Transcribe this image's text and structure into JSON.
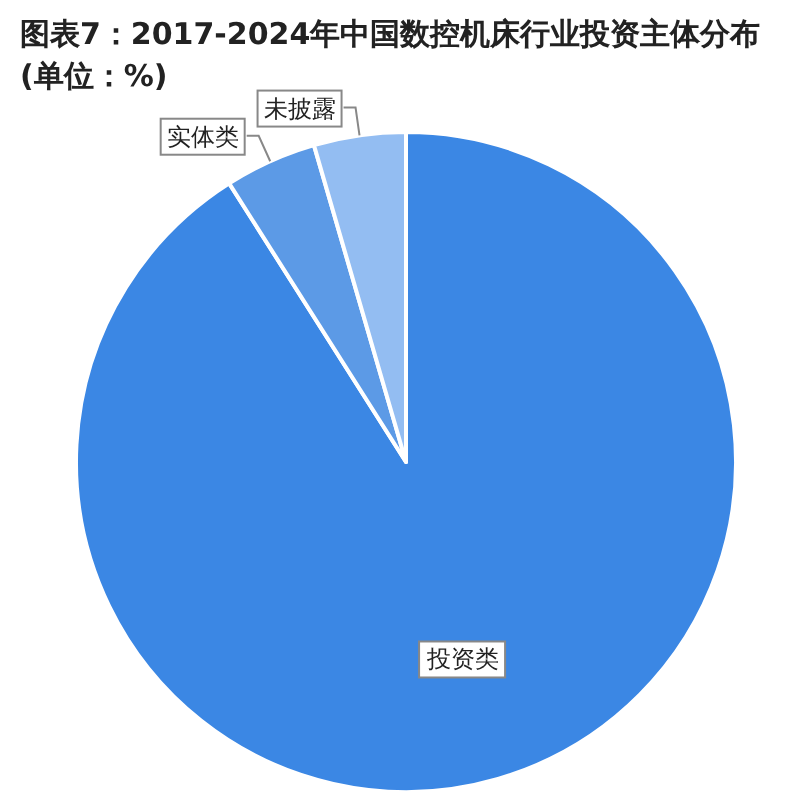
{
  "chart_data": {
    "type": "pie",
    "title": "图表7：2017-2024年中国数控机床行业投资主体分布(单位：%)",
    "categories": [
      "投资类",
      "实体类",
      "未披露"
    ],
    "values": [
      91,
      4.5,
      4.5
    ],
    "colors": [
      "#3b87e4",
      "#5c9ae6",
      "#93bdf2"
    ]
  }
}
